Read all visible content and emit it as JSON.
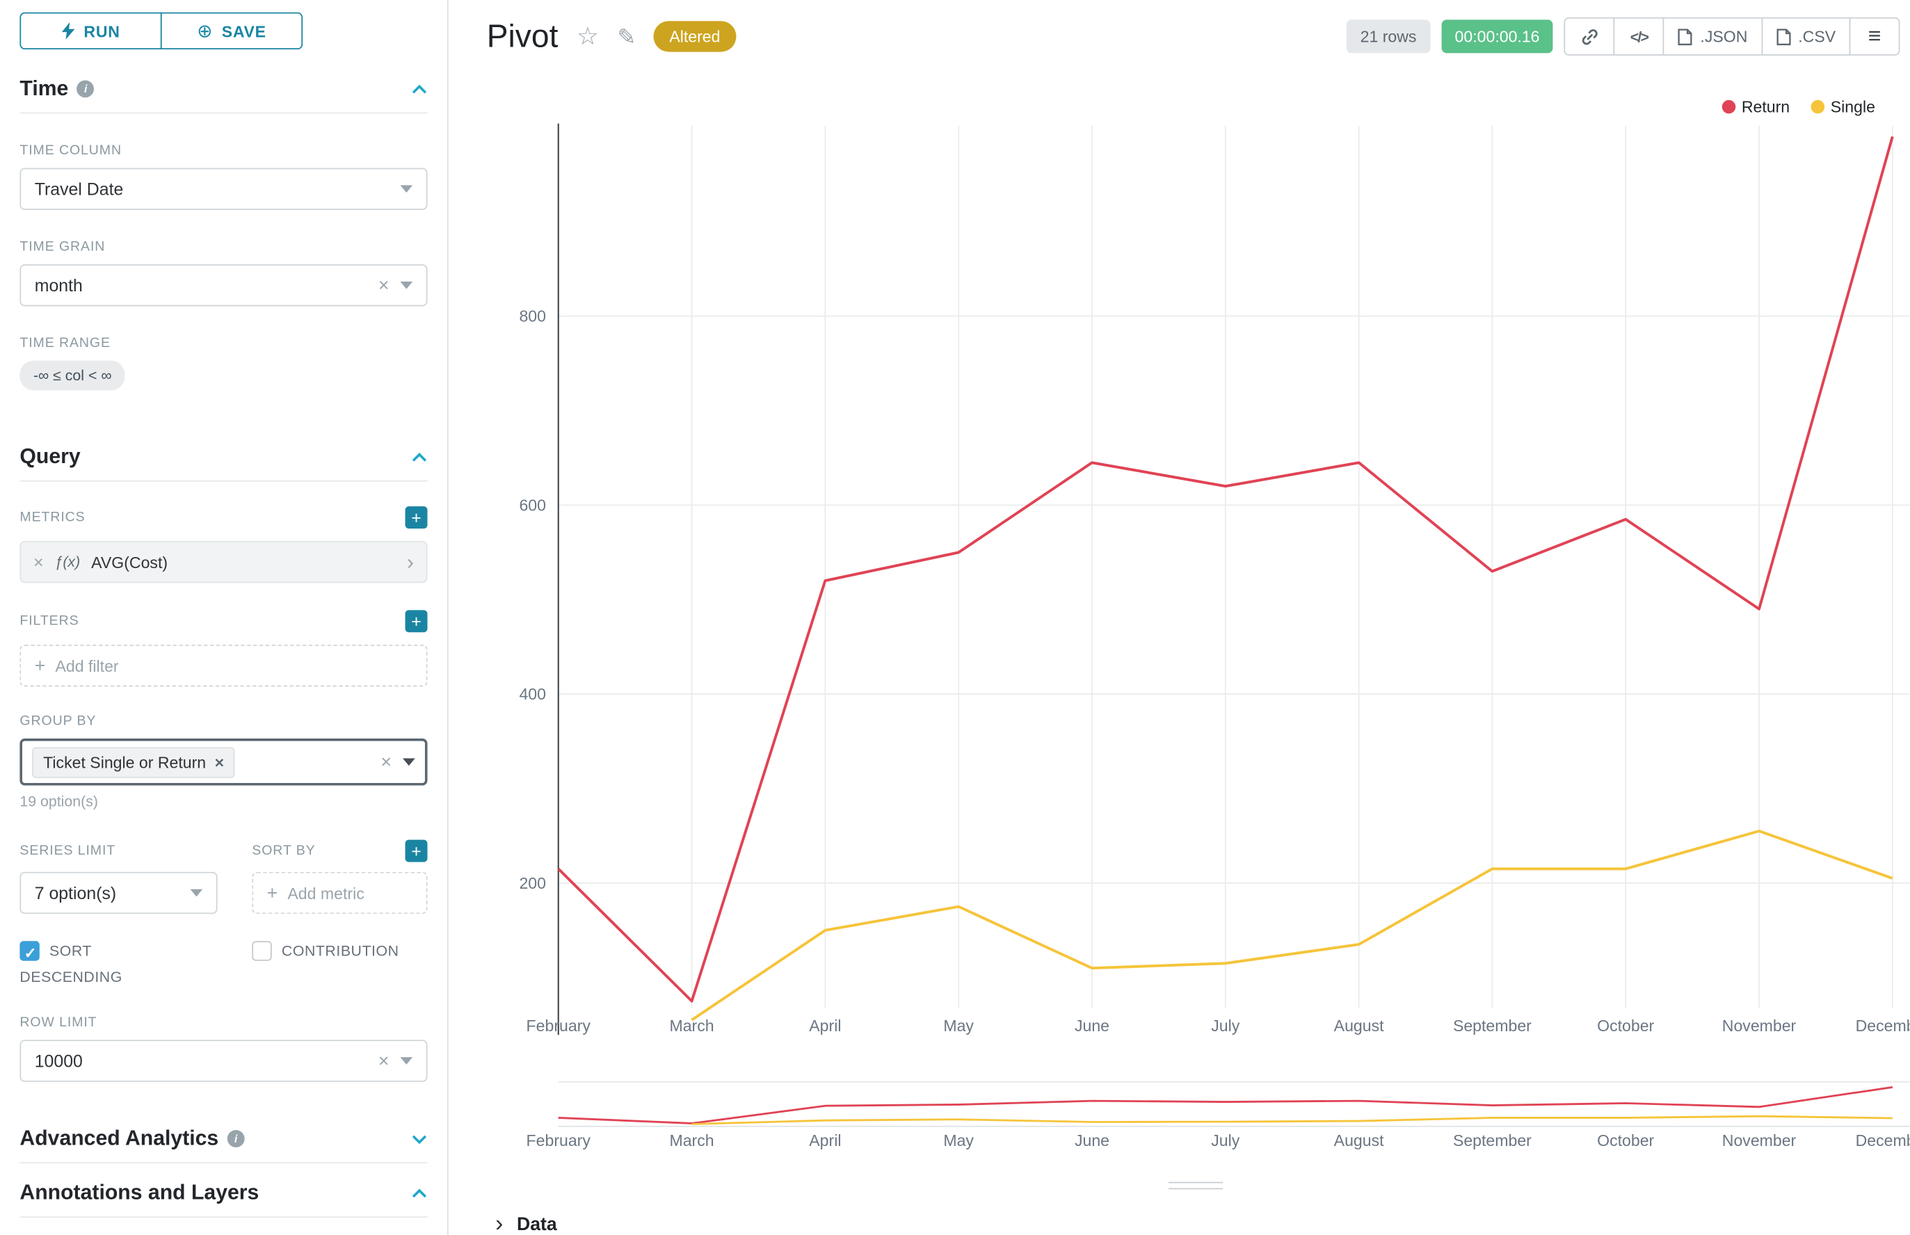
{
  "sidebar": {
    "run_label": "RUN",
    "save_label": "SAVE",
    "sections": {
      "time": "Time",
      "query": "Query",
      "advanced": "Advanced Analytics",
      "annotations": "Annotations and Layers"
    },
    "time": {
      "time_column_label": "TIME COLUMN",
      "time_column_value": "Travel Date",
      "time_grain_label": "TIME GRAIN",
      "time_grain_value": "month",
      "time_range_label": "TIME RANGE",
      "time_range_value": "-∞ ≤ col < ∞"
    },
    "query": {
      "metrics_label": "METRICS",
      "metric_fx": "ƒ(x)",
      "metric_value": "AVG(Cost)",
      "filters_label": "FILTERS",
      "add_filter_label": "Add filter",
      "group_by_label": "GROUP BY",
      "group_by_tag": "Ticket Single or Return",
      "options_hint": "19 option(s)",
      "series_limit_label": "SERIES LIMIT",
      "series_limit_value": "7 option(s)",
      "sort_by_label": "SORT BY",
      "add_metric_label": "Add metric",
      "sort_descending_label": "SORT DESCENDING",
      "sort_descending_checked": true,
      "contribution_label": "CONTRIBUTION",
      "contribution_checked": false,
      "row_limit_label": "ROW LIMIT",
      "row_limit_value": "10000"
    }
  },
  "header": {
    "title": "Pivot",
    "altered_badge": "Altered",
    "altered_color": "#cda41f",
    "rows_badge": "21 rows",
    "timer": "00:00:00.16",
    "timer_color": "#5ac189",
    "json_label": ".JSON",
    "csv_label": ".CSV"
  },
  "chart_data": {
    "type": "line",
    "title": "Pivot",
    "categories": [
      "February",
      "March",
      "April",
      "May",
      "June",
      "July",
      "August",
      "September",
      "October",
      "November",
      "December"
    ],
    "series": [
      {
        "name": "Return",
        "color": "#e04355",
        "values": [
          215,
          75,
          520,
          550,
          645,
          620,
          645,
          530,
          585,
          490,
          990
        ]
      },
      {
        "name": "Single",
        "color": "#f6c43a",
        "values": [
          null,
          55,
          150,
          175,
          110,
          115,
          135,
          215,
          215,
          255,
          205
        ]
      }
    ],
    "ylim": [
      0,
      1000
    ],
    "yticks": [
      200,
      400,
      600,
      800
    ],
    "ylabel": "",
    "xlabel": "",
    "legend_position": "top-right",
    "grid": true,
    "has_range_selector": true
  },
  "data_panel": {
    "label": "Data"
  }
}
